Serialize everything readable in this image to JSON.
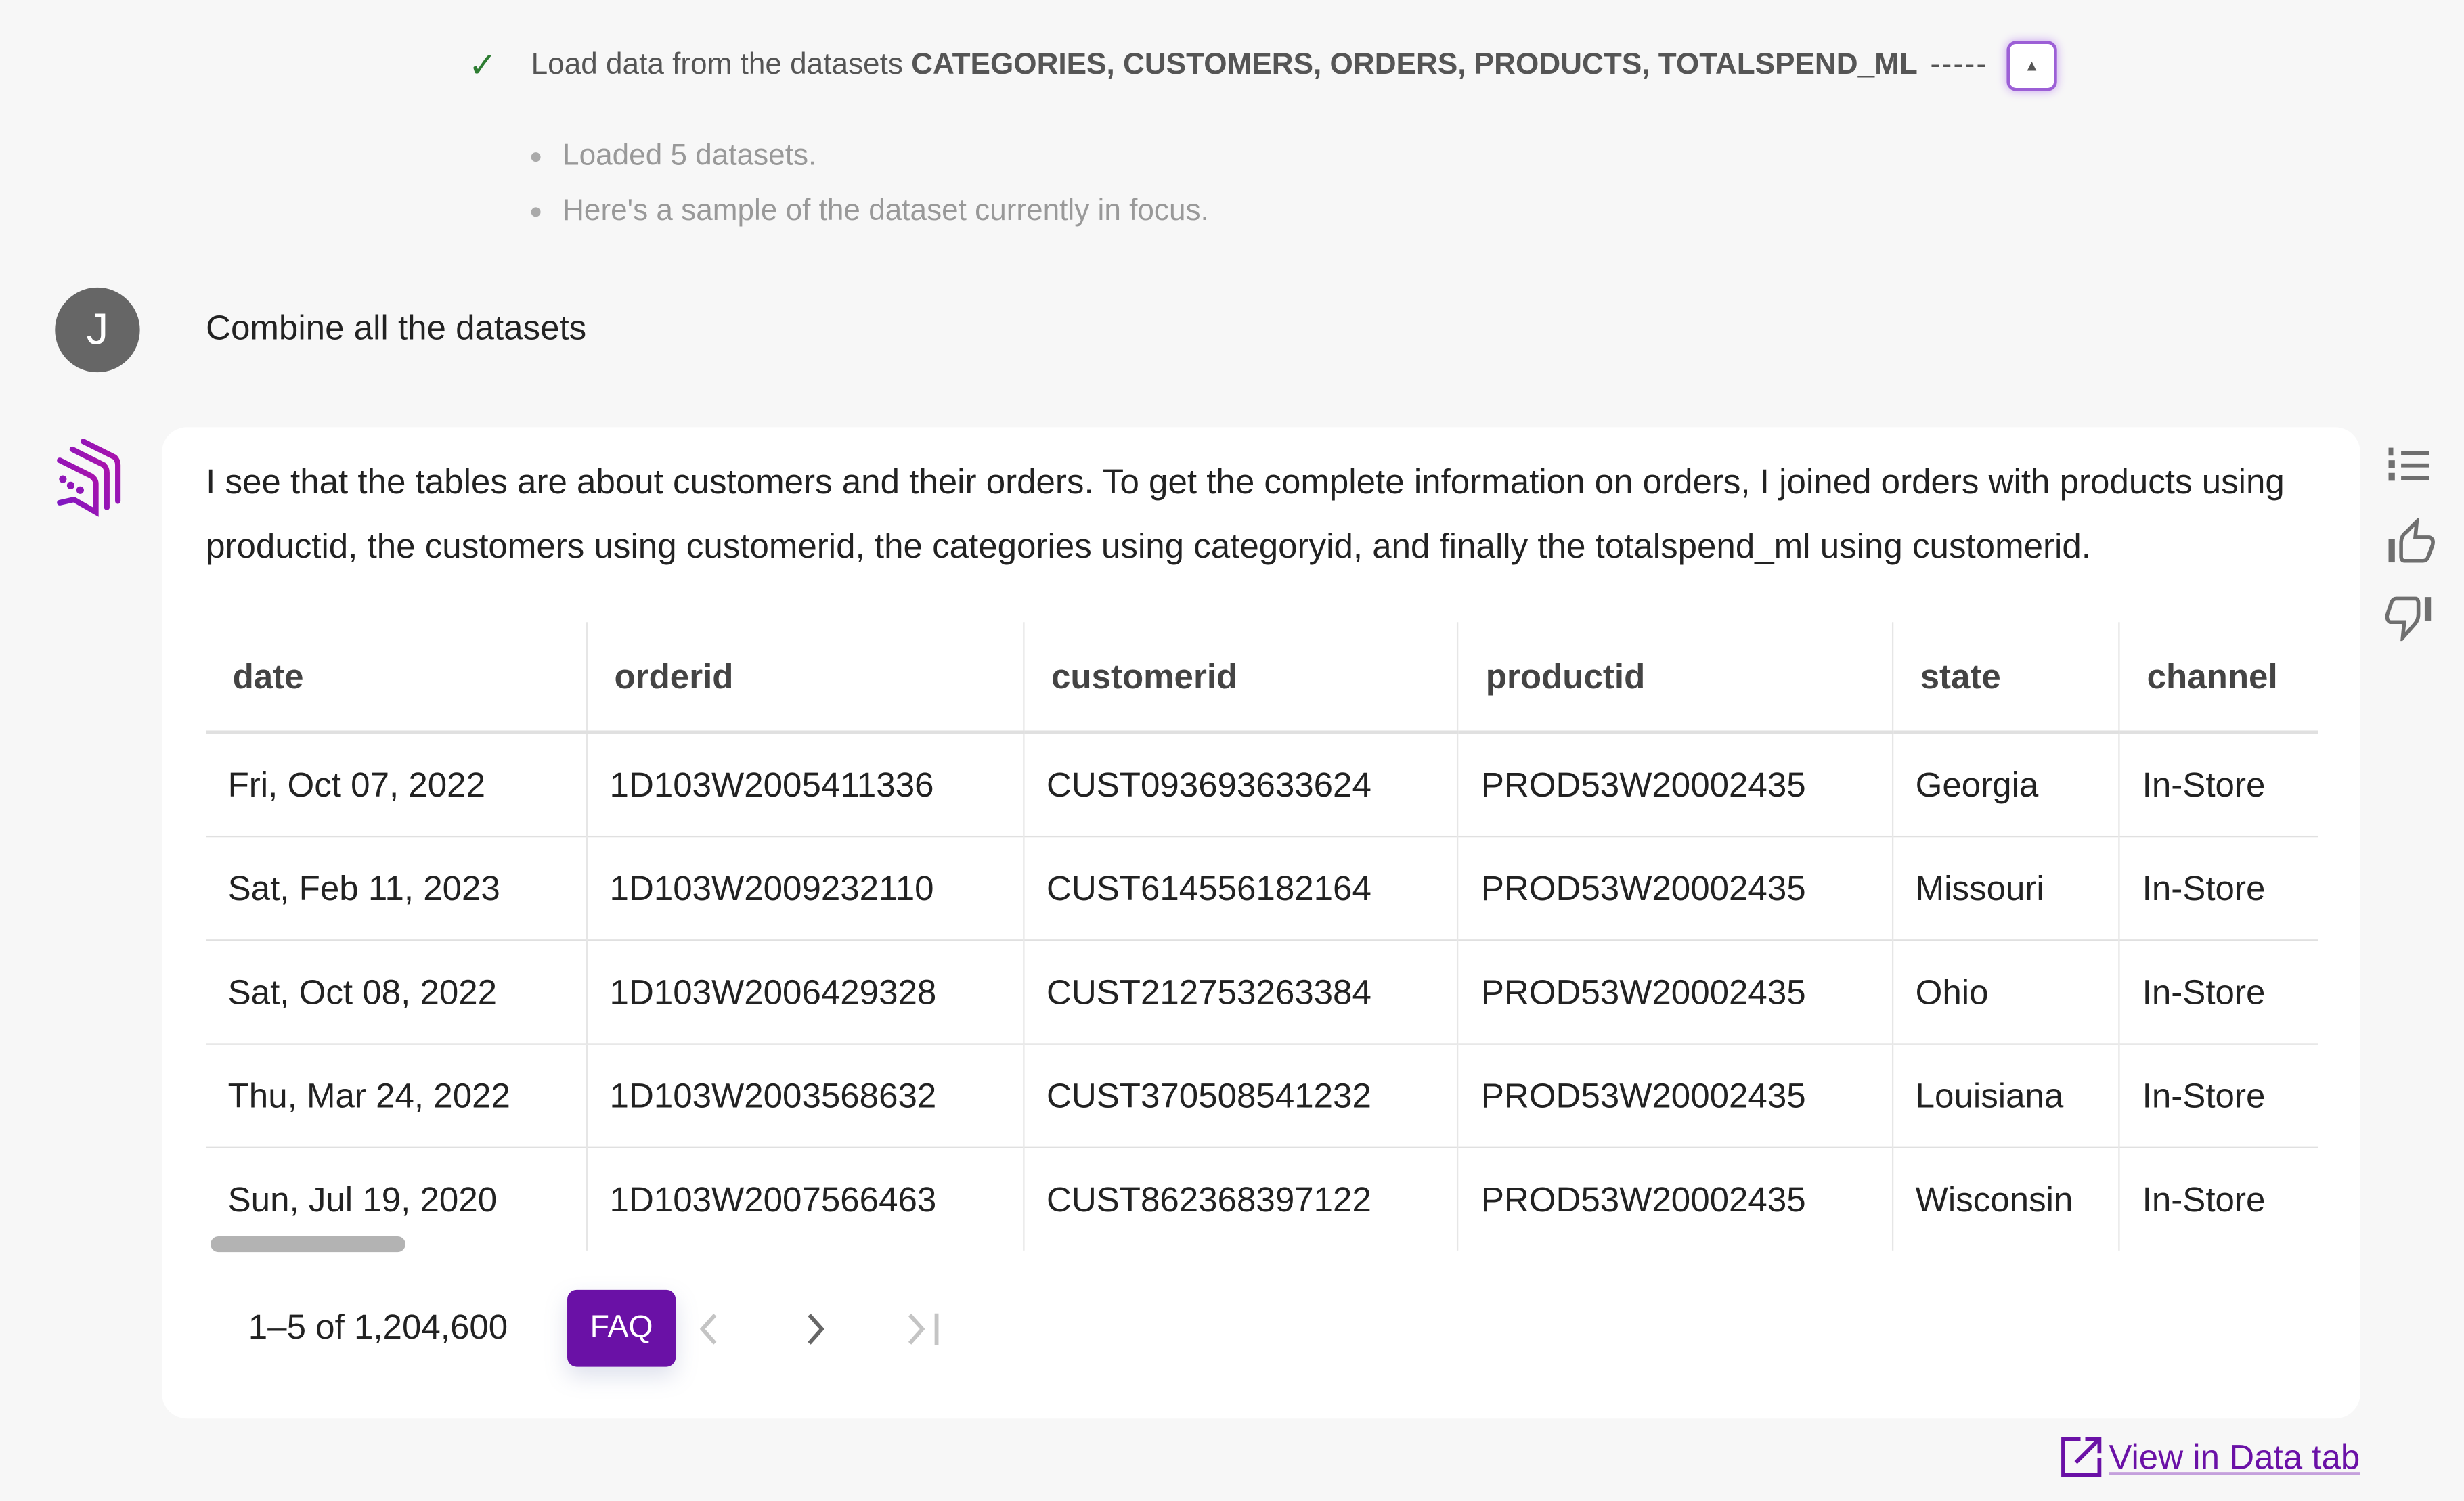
{
  "step": {
    "prefix": "Load data from the datasets",
    "datasets": "CATEGORIES, CUSTOMERS, ORDERS, PRODUCTS, TOTALSPEND_ML",
    "dashes": "-----",
    "status_icon": "check-icon",
    "details": [
      "Loaded 5 datasets.",
      "Here's a sample of the dataset currently in focus."
    ]
  },
  "user": {
    "avatar_initial": "J",
    "message": "Combine all the datasets"
  },
  "assistant": {
    "message": "I see that the tables are about customers and their orders. To get the complete information on orders, I joined orders with products using productid, the customers using customerid, the categories using categoryid, and finally the totalspend_ml using customerid.",
    "table": {
      "columns": [
        "date",
        "orderid",
        "customerid",
        "productid",
        "state",
        "channel"
      ],
      "rows": [
        [
          "Fri, Oct 07, 2022",
          "1D103W2005411336",
          "CUST093693633624",
          "PROD53W20002435",
          "Georgia",
          "In-Store"
        ],
        [
          "Sat, Feb 11, 2023",
          "1D103W2009232110",
          "CUST614556182164",
          "PROD53W20002435",
          "Missouri",
          "In-Store"
        ],
        [
          "Sat, Oct 08, 2022",
          "1D103W2006429328",
          "CUST212753263384",
          "PROD53W20002435",
          "Ohio",
          "In-Store"
        ],
        [
          "Thu, Mar 24, 2022",
          "1D103W2003568632",
          "CUST370508541232",
          "PROD53W20002435",
          "Louisiana",
          "In-Store"
        ],
        [
          "Sun, Jul 19, 2020",
          "1D103W2007566463",
          "CUST862368397122",
          "PROD53W20002435",
          "Wisconsin",
          "In-Store"
        ]
      ]
    },
    "pagination": {
      "range": "1–5 of 1,204,600",
      "faq": "FAQ"
    },
    "view_link": "View in Data tab"
  },
  "colors": {
    "accent": "#6a11a6",
    "check": "#2e7d32"
  }
}
